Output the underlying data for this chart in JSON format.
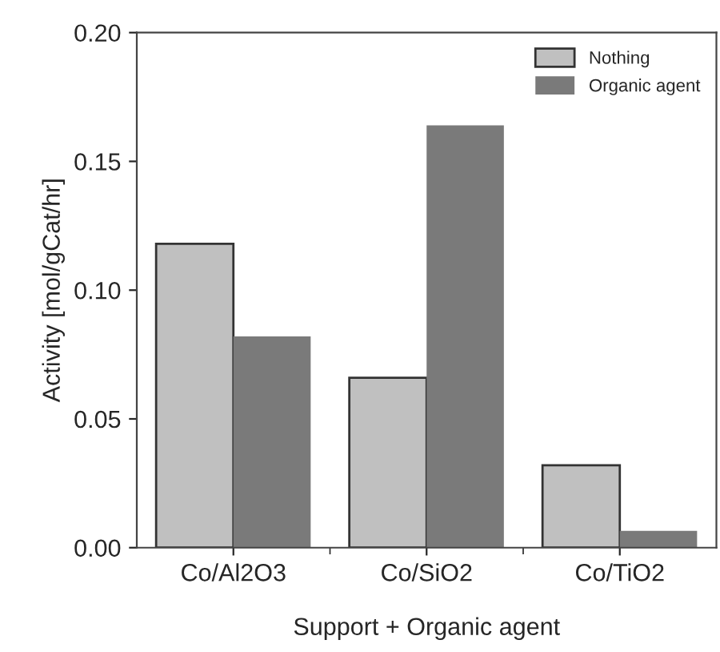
{
  "chart_data": {
    "type": "bar",
    "xlabel": "Support + Organic agent",
    "ylabel": "Activity [mol/gCat/hr]",
    "categories": [
      "Co/Al2O3",
      "Co/SiO2",
      "Co/TiO2"
    ],
    "series": [
      {
        "name": "Nothing",
        "color": "#c0c0c0",
        "values": [
          0.118,
          0.066,
          0.032
        ]
      },
      {
        "name": "Organic agent",
        "color": "#7a7a7a",
        "values": [
          0.082,
          0.164,
          0.0065
        ]
      }
    ],
    "ylim": [
      0,
      0.2
    ],
    "yticks": [
      {
        "value": 0,
        "label": "0.00"
      },
      {
        "value": 0.05,
        "label": "0.05"
      },
      {
        "value": 0.1,
        "label": "0.10"
      },
      {
        "value": 0.15,
        "label": "0.15"
      },
      {
        "value": 0.2,
        "label": "0.20"
      }
    ],
    "grid": false,
    "legend": "top right"
  }
}
